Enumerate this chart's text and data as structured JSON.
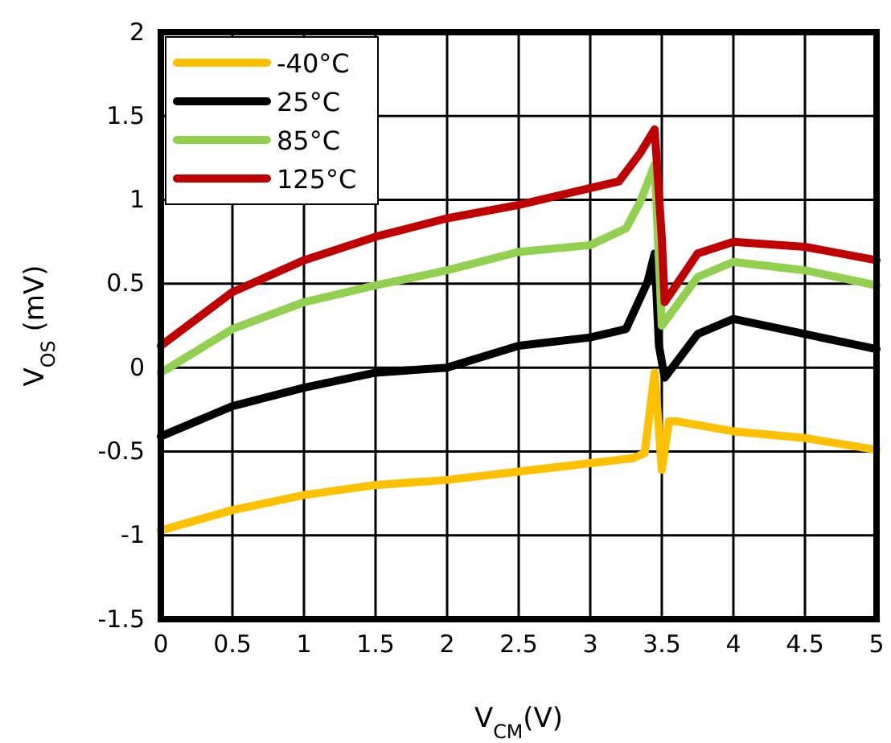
{
  "chart_data": {
    "type": "line",
    "xlabel": "V$_{CM}$(V)",
    "ylabel": "V$_{OS}$ (mV)",
    "xlim": [
      0,
      5
    ],
    "ylim": [
      -1.5,
      2
    ],
    "xticks": [
      0,
      0.5,
      1,
      1.5,
      2,
      2.5,
      3,
      3.5,
      4,
      4.5,
      5
    ],
    "yticks": [
      -1.5,
      -1,
      -0.5,
      0,
      0.5,
      1,
      1.5,
      2
    ],
    "grid": true,
    "legend": "top left",
    "line_style": "solid",
    "marker": "none",
    "series": [
      {
        "name": "-40°C",
        "color": "#ffc000",
        "x": [
          0,
          0.5,
          1,
          1.5,
          2,
          2.5,
          3,
          3.3,
          3.38,
          3.45,
          3.5,
          3.55,
          3.6,
          4,
          4.5,
          5
        ],
        "values": [
          -0.97,
          -0.85,
          -0.76,
          -0.7,
          -0.67,
          -0.62,
          -0.57,
          -0.54,
          -0.51,
          -0.03,
          -0.61,
          -0.32,
          -0.32,
          -0.38,
          -0.42,
          -0.49
        ]
      },
      {
        "name": "25°C",
        "color": "#000000",
        "x": [
          0,
          0.5,
          1,
          1.5,
          2,
          2.5,
          3,
          3.25,
          3.4,
          3.45,
          3.48,
          3.52,
          3.75,
          4,
          4.5,
          5
        ],
        "values": [
          -0.41,
          -0.23,
          -0.12,
          -0.03,
          0,
          0.13,
          0.18,
          0.23,
          0.51,
          0.68,
          0.13,
          -0.06,
          0.2,
          0.29,
          0.2,
          0.11
        ]
      },
      {
        "name": "85°C",
        "color": "#92d050",
        "x": [
          0,
          0.5,
          1,
          1.5,
          2,
          2.5,
          3,
          3.25,
          3.35,
          3.45,
          3.5,
          3.75,
          4,
          4.5,
          5
        ],
        "values": [
          -0.03,
          0.23,
          0.39,
          0.49,
          0.58,
          0.69,
          0.73,
          0.83,
          0.99,
          1.21,
          0.25,
          0.54,
          0.63,
          0.58,
          0.49
        ]
      },
      {
        "name": "125°C",
        "color": "#c00000",
        "x": [
          0,
          0.5,
          1,
          1.5,
          2,
          2.5,
          3,
          3.2,
          3.35,
          3.45,
          3.5,
          3.52,
          3.75,
          4,
          4.5,
          5
        ],
        "values": [
          0.13,
          0.45,
          0.64,
          0.78,
          0.89,
          0.97,
          1.07,
          1.11,
          1.28,
          1.42,
          0.77,
          0.39,
          0.68,
          0.75,
          0.72,
          0.64
        ]
      }
    ]
  }
}
